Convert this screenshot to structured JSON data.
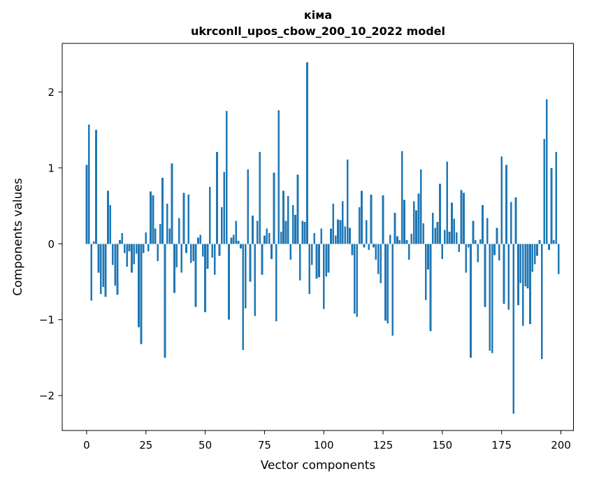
{
  "figure": {
    "title_line1": "кіма",
    "title_line2": "ukrconll_upos_cbow_200_10_2022 model",
    "xlabel": "Vector components",
    "ylabel": "Components values"
  },
  "chart_data": {
    "type": "bar",
    "title": "кіма\nukrconll_upos_cbow_200_10_2022 model",
    "xlabel": "Vector components",
    "ylabel": "Components values",
    "bar_color": "#1f77b4",
    "axis_color": "#000000",
    "background_color": "#ffffff",
    "grid": false,
    "legend": null,
    "n_bars": 200,
    "xlim": [
      -10.3,
      205.3
    ],
    "ylim": [
      -2.46,
      2.64
    ],
    "xticks": [
      0,
      25,
      50,
      75,
      100,
      125,
      150,
      175,
      200
    ],
    "xtick_labels": [
      "0",
      "25",
      "50",
      "75",
      "100",
      "125",
      "150",
      "175",
      "200"
    ],
    "yticks": [
      2,
      1,
      0,
      -1,
      -2
    ],
    "ytick_labels": [
      "2",
      "1",
      "0",
      "−1",
      "−2"
    ],
    "values": [
      1.04,
      1.57,
      -0.75,
      0.03,
      1.5,
      -0.38,
      -0.66,
      -0.57,
      -0.7,
      0.7,
      0.51,
      -0.28,
      -0.55,
      -0.67,
      0.05,
      0.14,
      -0.12,
      -0.3,
      -0.1,
      -0.38,
      -0.27,
      -0.13,
      -1.1,
      -1.32,
      -0.12,
      0.15,
      -0.1,
      0.69,
      0.64,
      0.2,
      -0.23,
      0.26,
      0.87,
      -1.5,
      0.53,
      0.2,
      1.06,
      -0.65,
      -0.31,
      0.34,
      -0.38,
      0.67,
      -0.12,
      0.65,
      -0.25,
      -0.23,
      -0.83,
      0.08,
      0.12,
      -0.17,
      -0.9,
      -0.33,
      0.75,
      -0.18,
      -0.41,
      1.21,
      -0.16,
      0.48,
      0.95,
      1.75,
      -1.0,
      0.08,
      0.12,
      0.3,
      0.04,
      -0.06,
      -1.4,
      -0.85,
      0.98,
      -0.5,
      0.37,
      -0.95,
      0.3,
      1.21,
      -0.41,
      0.11,
      0.2,
      0.14,
      -0.2,
      0.94,
      -1.02,
      1.76,
      0.16,
      0.7,
      0.3,
      0.63,
      -0.21,
      0.51,
      0.38,
      0.91,
      -0.48,
      0.3,
      0.29,
      2.39,
      -0.66,
      -0.28,
      0.14,
      -0.46,
      -0.44,
      0.2,
      -0.86,
      -0.43,
      -0.38,
      0.2,
      0.53,
      0.11,
      0.32,
      0.31,
      0.56,
      0.23,
      1.11,
      0.21,
      -0.15,
      -0.92,
      -0.96,
      0.48,
      0.7,
      -0.05,
      0.31,
      -0.08,
      0.65,
      -0.05,
      -0.21,
      -0.4,
      -0.52,
      0.64,
      -1.01,
      -1.05,
      0.12,
      -1.21,
      0.41,
      0.1,
      0.05,
      1.22,
      0.58,
      0.05,
      -0.21,
      0.13,
      0.56,
      0.44,
      0.66,
      0.98,
      0.27,
      -0.74,
      -0.34,
      -1.15,
      0.41,
      0.21,
      0.29,
      0.79,
      -0.2,
      0.18,
      1.08,
      0.16,
      0.54,
      0.33,
      0.15,
      -0.11,
      0.71,
      0.67,
      -0.38,
      -0.05,
      -1.5,
      0.3,
      0.05,
      -0.24,
      0.06,
      0.51,
      -0.83,
      0.34,
      -1.41,
      -1.44,
      -0.15,
      0.21,
      -0.22,
      1.15,
      -0.79,
      1.04,
      -0.87,
      0.55,
      -2.24,
      0.61,
      -0.81,
      -0.52,
      -1.08,
      -0.56,
      -0.59,
      -1.06,
      -0.37,
      -0.27,
      -0.16,
      0.05,
      -1.52,
      1.38,
      1.9,
      -0.08,
      1.0,
      0.05,
      1.21,
      -0.4
    ]
  }
}
